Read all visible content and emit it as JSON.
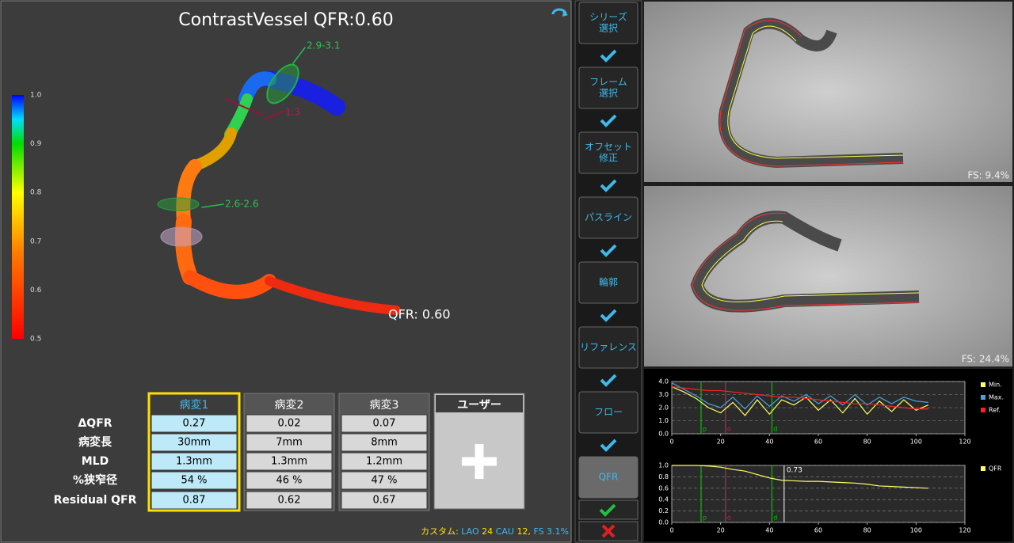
{
  "header": {
    "title": "ContrastVessel QFR:0.60"
  },
  "colorbar": {
    "ticks": [
      {
        "value": 1,
        "label": "1.0"
      },
      0.9,
      0.8,
      0.7,
      0.6,
      0.5
    ]
  },
  "vessel_labels": {
    "proximal_ref": "2.9-3.1",
    "mld": "1.3",
    "distal_ref": "2.6-2.6",
    "qfr": "QFR: 0.60"
  },
  "table": {
    "columns": [
      "病変1",
      "病変2",
      "病変3"
    ],
    "row_labels": [
      "ΔQFR",
      "病変長",
      "MLD",
      "%狭窄径",
      "Residual QFR"
    ],
    "rows": [
      [
        "0.27",
        "0.02",
        "0.07"
      ],
      [
        "30mm",
        "7mm",
        "8mm"
      ],
      [
        "1.3mm",
        "1.3mm",
        "1.2mm"
      ],
      [
        "54 %",
        "46 %",
        "47 %"
      ],
      [
        "0.87",
        "0.62",
        "0.67"
      ]
    ],
    "user_column": "ユーザー"
  },
  "footer": {
    "custom": "カスタム:",
    "lao": "LAO",
    "lao_value": "24",
    "cau": "CAU",
    "cau_value": "12,",
    "fs": "FS 3.1%"
  },
  "steps": [
    [
      "シリーズ",
      "選択"
    ],
    [
      "フレーム",
      "選択"
    ],
    [
      "オフセット",
      "修正"
    ],
    [
      "パスライン"
    ],
    [
      "輪郭"
    ],
    [
      "リファレンス"
    ],
    [
      "フロー"
    ],
    [
      "QFR"
    ]
  ],
  "images": [
    {
      "fs": "FS: 9.4%"
    },
    {
      "fs": "FS: 24.4%"
    }
  ],
  "chart_data": [
    {
      "type": "line",
      "x": [
        0,
        5,
        10,
        15,
        20,
        25,
        30,
        35,
        40,
        45,
        50,
        55,
        60,
        65,
        70,
        75,
        80,
        85,
        90,
        95,
        100,
        105
      ],
      "series": [
        {
          "name": "Min.",
          "color": "#ffff66",
          "values": [
            3.6,
            3.2,
            2.7,
            2.0,
            1.6,
            2.4,
            1.4,
            2.6,
            1.5,
            2.6,
            2.2,
            2.8,
            1.8,
            2.6,
            1.6,
            2.7,
            1.5,
            2.5,
            1.7,
            2.6,
            1.8,
            2.2
          ]
        },
        {
          "name": "Max.",
          "color": "#4aa3df",
          "values": [
            3.9,
            3.4,
            2.9,
            2.3,
            2.0,
            2.8,
            1.9,
            2.9,
            2.1,
            2.9,
            2.5,
            3.0,
            2.3,
            2.9,
            2.2,
            3.0,
            2.2,
            2.8,
            2.3,
            2.8,
            2.5,
            2.4
          ]
        },
        {
          "name": "Ref.",
          "color": "#ff2020",
          "values": [
            3.6,
            3.5,
            3.4,
            3.3,
            3.3,
            3.2,
            3.1,
            3.0,
            2.9,
            2.8,
            2.8,
            2.7,
            2.6,
            2.5,
            2.4,
            2.3,
            2.3,
            2.2,
            2.1,
            2.0,
            1.9,
            1.9
          ]
        }
      ],
      "xlim": [
        0,
        120
      ],
      "xticks": [
        0,
        20,
        40,
        60,
        80,
        100,
        120
      ],
      "ylim": [
        0,
        4
      ],
      "yticks": [
        {
          "value": 0,
          "label": "0.0"
        },
        {
          "value": 1,
          "label": "1.0"
        },
        {
          "value": 2,
          "label": "2.0"
        },
        {
          "value": 3,
          "label": "3.0"
        },
        {
          "value": 4,
          "label": "4.0"
        }
      ],
      "markers": [
        {
          "label": "p",
          "x": 12,
          "color": "#00c000"
        },
        {
          "label": "o",
          "x": 22,
          "color": "#d0204a"
        },
        {
          "label": "d",
          "x": 41,
          "color": "#00c000"
        }
      ]
    },
    {
      "type": "line",
      "x": [
        0,
        5,
        10,
        15,
        20,
        25,
        30,
        35,
        40,
        45,
        50,
        55,
        60,
        65,
        70,
        75,
        80,
        85,
        90,
        95,
        100,
        105
      ],
      "series": [
        {
          "name": "QFR",
          "color": "#ffff66",
          "values": [
            1.0,
            1.0,
            1.0,
            0.99,
            0.97,
            0.93,
            0.9,
            0.84,
            0.78,
            0.74,
            0.73,
            0.72,
            0.72,
            0.71,
            0.7,
            0.69,
            0.67,
            0.64,
            0.63,
            0.62,
            0.61,
            0.6
          ]
        }
      ],
      "xlim": [
        0,
        120
      ],
      "xticks": [
        0,
        20,
        40,
        60,
        80,
        100,
        120
      ],
      "ylim": [
        0,
        1
      ],
      "yticks": [
        {
          "value": 0,
          "label": "0.0"
        },
        0.2,
        0.4,
        0.6,
        0.8,
        {
          "value": 1,
          "label": "1.0"
        }
      ],
      "markers": [
        {
          "label": "p",
          "x": 12,
          "color": "#00c000"
        },
        {
          "label": "o",
          "x": 22,
          "color": "#d0204a"
        },
        {
          "label": "d",
          "x": 41,
          "color": "#00c000"
        }
      ],
      "annotation": {
        "x": 46,
        "label": "0.73",
        "color": "#ffffff"
      }
    }
  ]
}
